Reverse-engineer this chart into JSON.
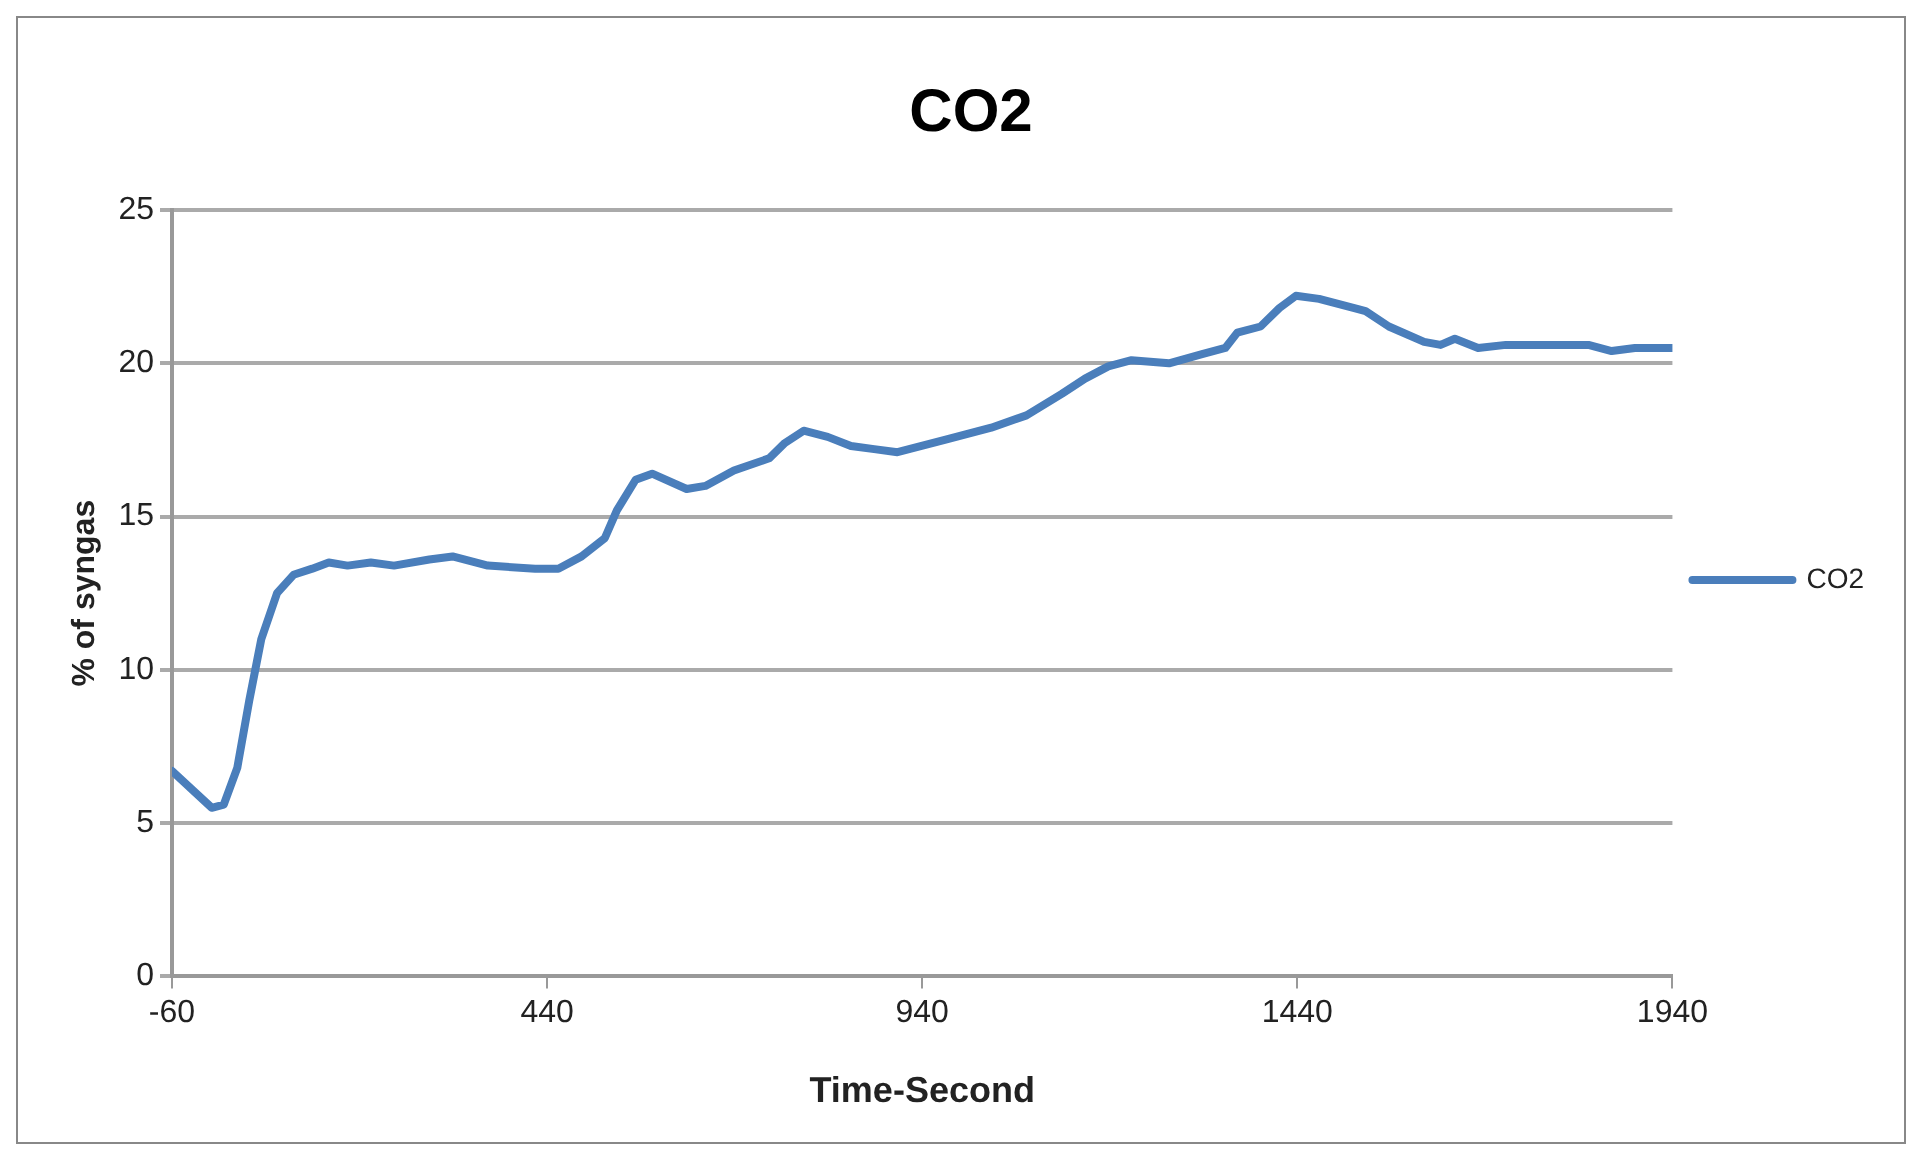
{
  "chart_data": {
    "type": "line",
    "title": "CO2",
    "xlabel": "Time-Second",
    "ylabel": "% of syngas",
    "xlim": [
      -60,
      1940
    ],
    "xticks": [
      -60,
      440,
      940,
      1440,
      1940
    ],
    "ylim": [
      0,
      25
    ],
    "yticks": [
      0,
      5,
      10,
      15,
      20,
      25
    ],
    "grid": "y",
    "legend": "right",
    "marker": "none",
    "line_style": "solid",
    "series": [
      {
        "name": "CO2",
        "color": "#4a7ebb",
        "x": [
          -60,
          -29,
          -7,
          9,
          27,
          43,
          59,
          80,
          102,
          127,
          149,
          174,
          205,
          236,
          283,
          314,
          361,
          424,
          455,
          486,
          517,
          533,
          558,
          580,
          626,
          651,
          689,
          736,
          757,
          782,
          814,
          845,
          876,
          907,
          970,
          1032,
          1079,
          1126,
          1157,
          1188,
          1219,
          1269,
          1313,
          1344,
          1360,
          1391,
          1416,
          1438,
          1469,
          1516,
          1531,
          1562,
          1609,
          1631,
          1650,
          1681,
          1718,
          1781,
          1828,
          1859,
          1890,
          1940
        ],
        "values": [
          6.7,
          6.0,
          5.5,
          5.6,
          6.8,
          9.0,
          11.0,
          12.5,
          13.1,
          13.3,
          13.5,
          13.4,
          13.5,
          13.4,
          13.6,
          13.7,
          13.4,
          13.3,
          13.3,
          13.7,
          14.3,
          15.2,
          16.2,
          16.4,
          15.9,
          16.0,
          16.5,
          16.9,
          17.4,
          17.8,
          17.6,
          17.3,
          17.2,
          17.1,
          17.5,
          17.9,
          18.3,
          19.0,
          19.5,
          19.9,
          20.1,
          20.0,
          20.3,
          20.5,
          21.0,
          21.2,
          21.8,
          22.2,
          22.1,
          21.8,
          21.7,
          21.2,
          20.7,
          20.6,
          20.8,
          20.5,
          20.6,
          20.6,
          20.6,
          20.4,
          20.5,
          20.5
        ]
      }
    ]
  }
}
